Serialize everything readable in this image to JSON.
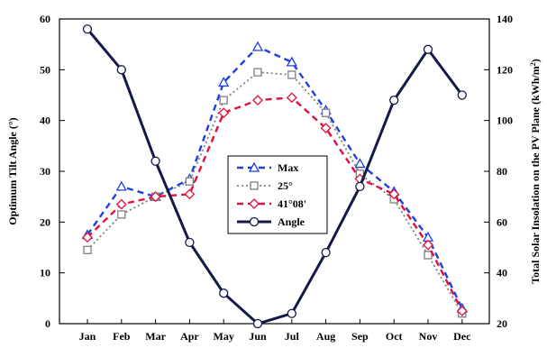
{
  "chart_data": {
    "type": "line",
    "title": "",
    "categories": [
      "Jan",
      "Feb",
      "Mar",
      "Apr",
      "May",
      "Jun",
      "Jul",
      "Aug",
      "Sep",
      "Oct",
      "Nov",
      "Dec"
    ],
    "y_left": {
      "label": "Optimum Tilt Angle (°)",
      "range": [
        0,
        60
      ],
      "ticks": [
        "0",
        "10",
        "20",
        "30",
        "40",
        "50",
        "60"
      ]
    },
    "y_right": {
      "label_main": "Total Solar Insolation on the PV Plane (kWh/m",
      "label_sup": "2",
      "label_end": ")",
      "range": [
        20,
        140
      ],
      "ticks": [
        "20",
        "40",
        "60",
        "80",
        "100",
        "120",
        "140"
      ]
    },
    "series": [
      {
        "name": "Max",
        "axis": "right",
        "color": "#1f3fe0",
        "marker": "triangle",
        "dash": "dashed",
        "values": [
          55,
          74,
          70,
          77,
          115,
          129,
          123,
          104,
          83,
          72,
          54,
          26
        ]
      },
      {
        "name": "25°",
        "axis": "right",
        "color": "#808080",
        "marker": "square",
        "dash": "dotted",
        "values": [
          49,
          63,
          70,
          76,
          108,
          119,
          118,
          103,
          79,
          69,
          47,
          24
        ]
      },
      {
        "name": "41°08'",
        "axis": "right",
        "color": "#e0103c",
        "marker": "diamond",
        "dash": "dashed",
        "values": [
          54,
          67,
          70,
          71,
          103,
          108,
          109,
          97,
          77,
          71,
          51,
          25
        ]
      },
      {
        "name": "Angle",
        "axis": "left",
        "color": "#14194a",
        "marker": "circle",
        "dash": "solid",
        "values": [
          58,
          50,
          32,
          16,
          6,
          0,
          2,
          14,
          27,
          44,
          54,
          45
        ]
      }
    ],
    "legend_position": "center"
  }
}
